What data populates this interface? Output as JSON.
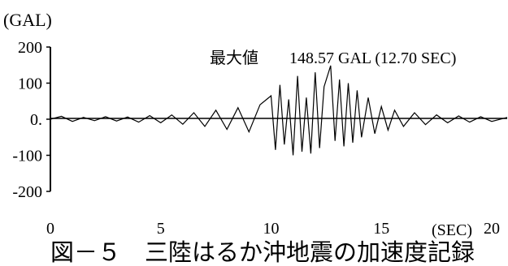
{
  "chart_data": {
    "type": "line",
    "title": "",
    "xlabel": "(SEC)",
    "ylabel": "(GAL)",
    "xlim": [
      0,
      20.7
    ],
    "ylim": [
      -200,
      200
    ],
    "x_ticks": [
      "0",
      "5",
      "10",
      "15",
      "20"
    ],
    "y_ticks": [
      "200",
      "100",
      "0.",
      "-100",
      "-200"
    ],
    "annotation": {
      "label": "最大値",
      "value": "148.57 GAL (12.70 SEC)"
    },
    "peak": {
      "x": 12.7,
      "y": 148.57
    },
    "series": [
      {
        "x": [
          0,
          0.5,
          1,
          1.5,
          2,
          2.5,
          3,
          3.5,
          4,
          4.5,
          5,
          5.5,
          6,
          6.5,
          7,
          7.5,
          8,
          8.5,
          9,
          9.5,
          10,
          10.2,
          10.4,
          10.6,
          10.8,
          11.0,
          11.2,
          11.4,
          11.6,
          11.8,
          12.0,
          12.2,
          12.4,
          12.7,
          12.9,
          13.1,
          13.3,
          13.5,
          13.7,
          13.9,
          14.1,
          14.4,
          14.7,
          15.0,
          15.3,
          15.6,
          16.0,
          16.5,
          17.0,
          17.5,
          18.0,
          18.5,
          19.0,
          19.5,
          20.0,
          20.7
        ],
        "values": [
          0,
          8,
          -6,
          5,
          -4,
          7,
          -5,
          6,
          -8,
          10,
          -10,
          12,
          -14,
          18,
          -20,
          25,
          -28,
          32,
          -35,
          40,
          65,
          -85,
          95,
          -70,
          55,
          -100,
          120,
          -90,
          60,
          -95,
          130,
          -80,
          90,
          148.57,
          -60,
          110,
          -75,
          100,
          -65,
          80,
          -50,
          60,
          -40,
          35,
          -30,
          25,
          -20,
          18,
          -15,
          12,
          -10,
          9,
          -8,
          7,
          -6,
          5
        ]
      }
    ]
  },
  "caption": "図－５　三陸はるか沖地震の加速度記録"
}
